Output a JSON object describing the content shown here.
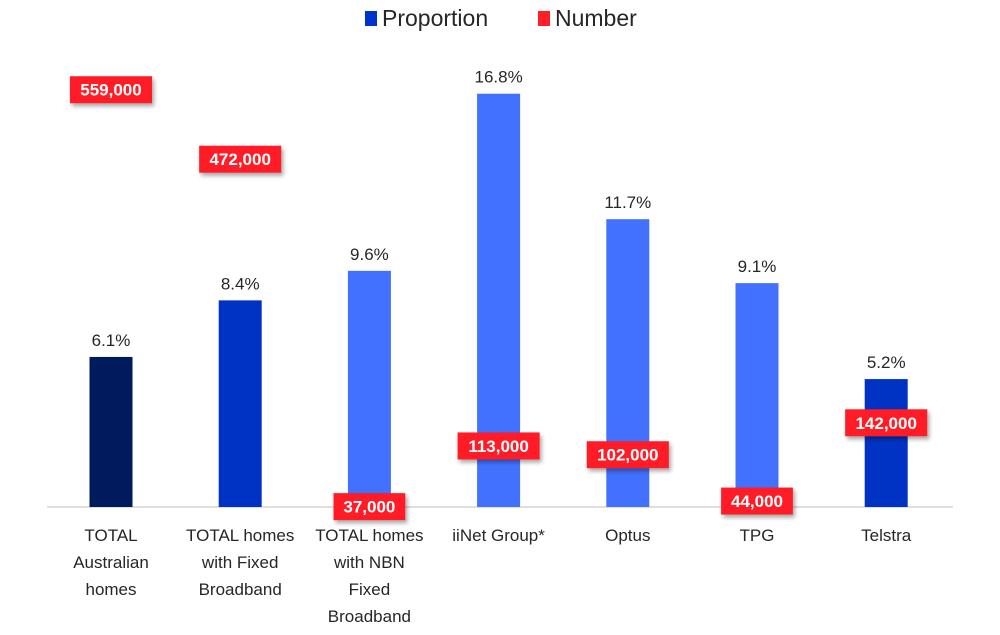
{
  "chart_data": {
    "type": "bar",
    "legend": {
      "placement": "top-center",
      "entries": [
        {
          "name": "Proportion",
          "color": "#0033CC"
        },
        {
          "name": "Number",
          "color": "#FF1F26"
        }
      ]
    },
    "ylim": [
      0,
      18
    ],
    "grid": false,
    "categories": [
      [
        "TOTAL",
        "Australian",
        "homes"
      ],
      [
        "TOTAL homes",
        "with Fixed",
        "Broadband"
      ],
      [
        "TOTAL homes",
        "with NBN",
        "Fixed",
        "Broadband"
      ],
      [
        "iiNet Group*"
      ],
      [
        "Optus"
      ],
      [
        "TPG"
      ],
      [
        "Telstra"
      ]
    ],
    "series": [
      {
        "name": "Proportion",
        "values": [
          6.1,
          8.4,
          9.6,
          16.8,
          11.7,
          9.1,
          5.2
        ],
        "labels": [
          "6.1%",
          "8.4%",
          "9.6%",
          "16.8%",
          "11.7%",
          "9.1%",
          "5.2%"
        ],
        "colors": [
          "#001A5E",
          "#0033C4",
          "#4271FF",
          "#4271FF",
          "#4271FF",
          "#4271FF",
          "#0033C4"
        ]
      },
      {
        "name": "Number",
        "values": [
          559000,
          472000,
          37000,
          113000,
          102000,
          44000,
          142000
        ],
        "labels": [
          "559,000",
          "472,000",
          "37,000",
          "113,000",
          "102,000",
          "44,000",
          "142,000"
        ],
        "color": "#FF1F26"
      }
    ]
  }
}
